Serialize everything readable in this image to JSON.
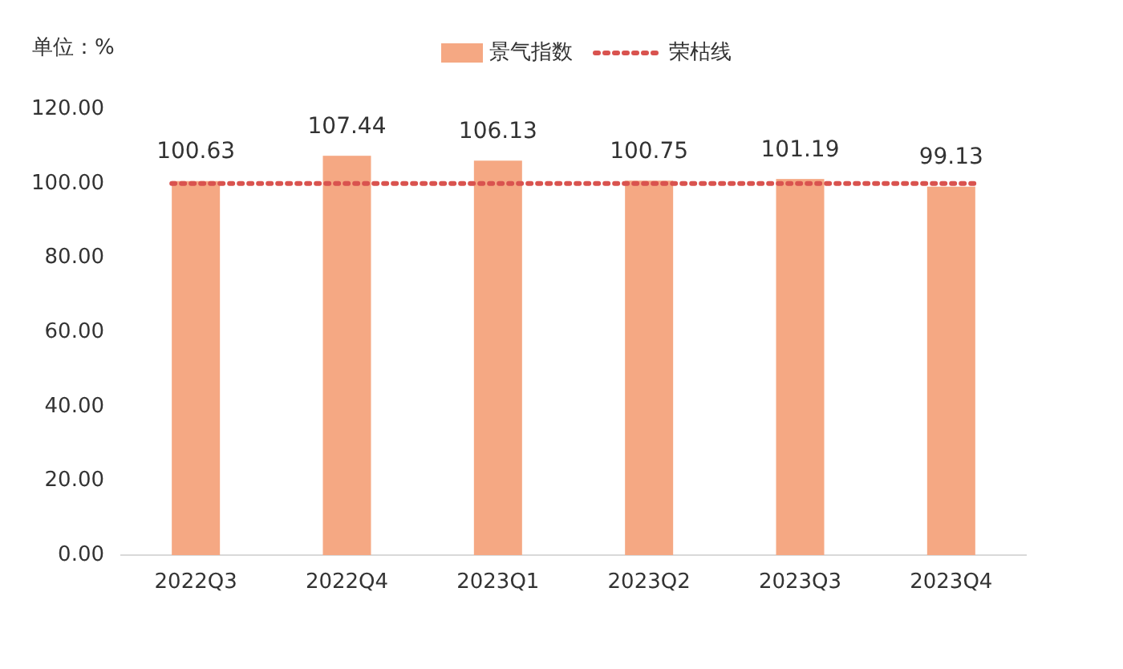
{
  "chart_data": {
    "type": "bar",
    "ylabel": "单位：%",
    "categories": [
      "2022Q3",
      "2022Q4",
      "2023Q1",
      "2023Q2",
      "2023Q3",
      "2023Q4"
    ],
    "series": [
      {
        "name": "景气指数",
        "color": "#f5a883",
        "values": [
          100.63,
          107.44,
          106.13,
          100.75,
          101.19,
          99.13
        ]
      }
    ],
    "ylim": [
      0,
      120
    ],
    "yticks": [
      {
        "value": 0,
        "label": "0.00"
      },
      {
        "value": 20,
        "label": "20.00"
      },
      {
        "value": 40,
        "label": "40.00"
      },
      {
        "value": 60,
        "label": "60.00"
      },
      {
        "value": 80,
        "label": "80.00"
      },
      {
        "value": 100,
        "label": "100.00"
      },
      {
        "value": 120,
        "label": "120.00"
      }
    ],
    "ref_lines": [
      {
        "axis": "y",
        "value": 100,
        "label": "荣枯线",
        "color": "#d9534f",
        "line_style": "dotted"
      }
    ],
    "data_labels": true,
    "grid": false,
    "legend": "top"
  }
}
